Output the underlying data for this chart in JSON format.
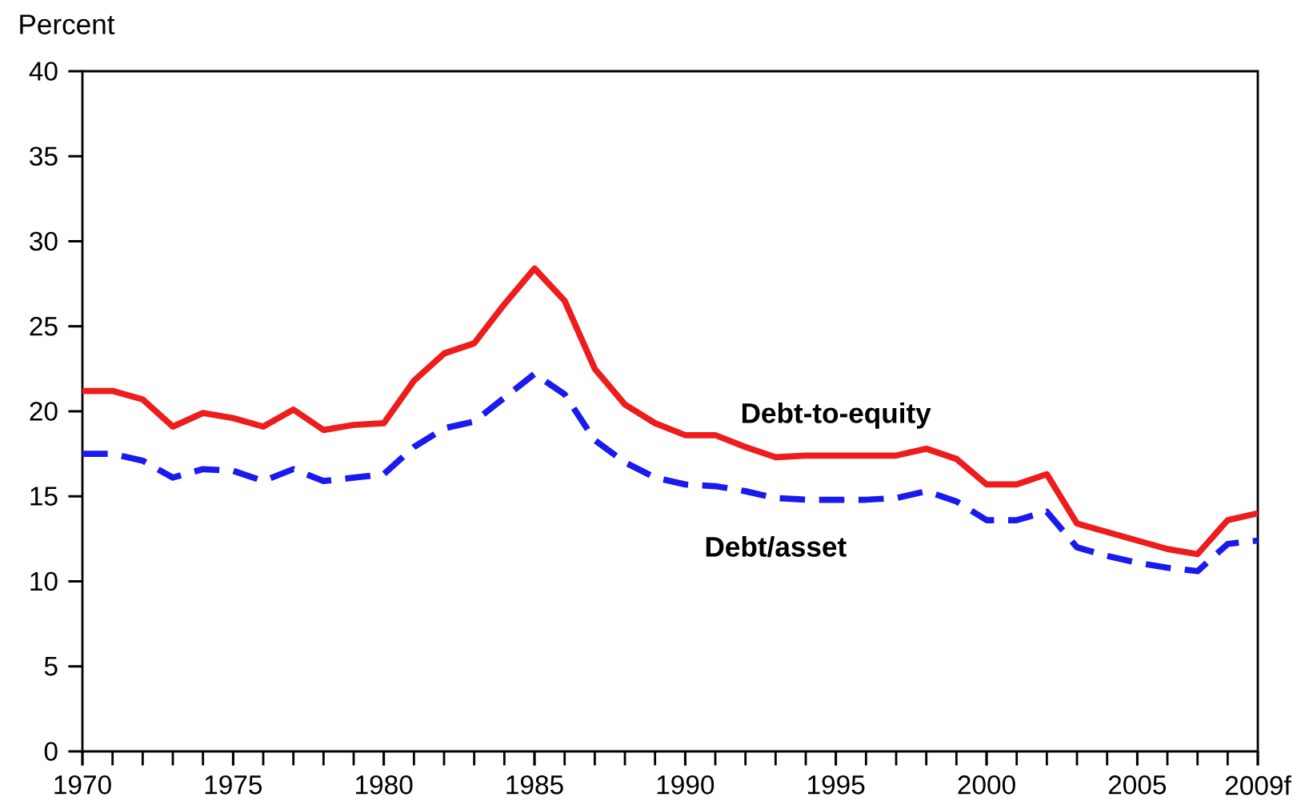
{
  "chart_data": {
    "type": "line",
    "ylabel": "Percent",
    "x": [
      1970,
      1971,
      1972,
      1973,
      1974,
      1975,
      1976,
      1977,
      1978,
      1979,
      1980,
      1981,
      1982,
      1983,
      1984,
      1985,
      1986,
      1987,
      1988,
      1989,
      1990,
      1991,
      1992,
      1993,
      1994,
      1995,
      1996,
      1997,
      1998,
      1999,
      2000,
      2001,
      2002,
      2003,
      2004,
      2005,
      2006,
      2007,
      2008,
      2009
    ],
    "series": [
      {
        "name": "Debt-to-equity",
        "color": "#ee1c1c",
        "line_style": "solid",
        "values": [
          21.2,
          21.2,
          20.7,
          19.1,
          19.9,
          19.6,
          19.1,
          20.1,
          18.9,
          19.2,
          19.3,
          21.8,
          23.4,
          24.0,
          26.3,
          28.4,
          26.5,
          22.5,
          20.4,
          19.3,
          18.6,
          18.6,
          17.9,
          17.3,
          17.4,
          17.4,
          17.4,
          17.4,
          17.8,
          17.2,
          15.7,
          15.7,
          16.3,
          13.4,
          12.9,
          12.4,
          11.9,
          11.6,
          13.6,
          14.0
        ]
      },
      {
        "name": "Debt/asset",
        "color": "#1a1aee",
        "line_style": "dashed",
        "values": [
          17.5,
          17.5,
          17.1,
          16.1,
          16.6,
          16.5,
          15.9,
          16.6,
          15.9,
          16.1,
          16.3,
          17.9,
          19.0,
          19.4,
          20.8,
          22.2,
          21.0,
          18.3,
          17.0,
          16.1,
          15.7,
          15.6,
          15.3,
          14.9,
          14.8,
          14.8,
          14.8,
          14.9,
          15.3,
          14.7,
          13.6,
          13.6,
          14.1,
          12.0,
          11.5,
          11.1,
          10.8,
          10.6,
          12.2,
          12.4
        ]
      }
    ],
    "xlim": [
      1970,
      2009
    ],
    "ylim": [
      0,
      40
    ],
    "xticks": [
      1970,
      1975,
      1980,
      1985,
      1990,
      1995,
      2000,
      2005,
      {
        "value": 2009,
        "label": "2009f"
      }
    ],
    "yticks": [
      0,
      5,
      10,
      15,
      20,
      25,
      30,
      35,
      40
    ]
  }
}
